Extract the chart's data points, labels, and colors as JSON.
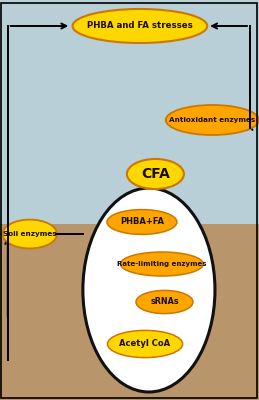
{
  "fig_width": 2.59,
  "fig_height": 4.0,
  "dpi": 100,
  "bg_top_color": "#b8cfd8",
  "bg_bottom_color": "#b8956a",
  "ellipse_yellow": "#FFD700",
  "ellipse_orange": "#FFA500",
  "ellipse_stroke": "#CC7700",
  "text_color": "#1a0d00",
  "arrow_color": "#000000",
  "green_arrow_color": "#007700",
  "circle_bg": "#ffffff",
  "circle_stroke": "#111111",
  "labels": {
    "phba_fa_stress": "PHBA and FA stresses",
    "antioxidant": "Antioxidant enzymes",
    "cfa": "CFA",
    "phba_fa": "PHBA+FA",
    "rate_limiting": "Rate-limiting enzymes",
    "sRNAs": "sRNAs",
    "acetyl_coa": "Acetyl CoA",
    "soil_enzymes": "Soil enzymes"
  }
}
